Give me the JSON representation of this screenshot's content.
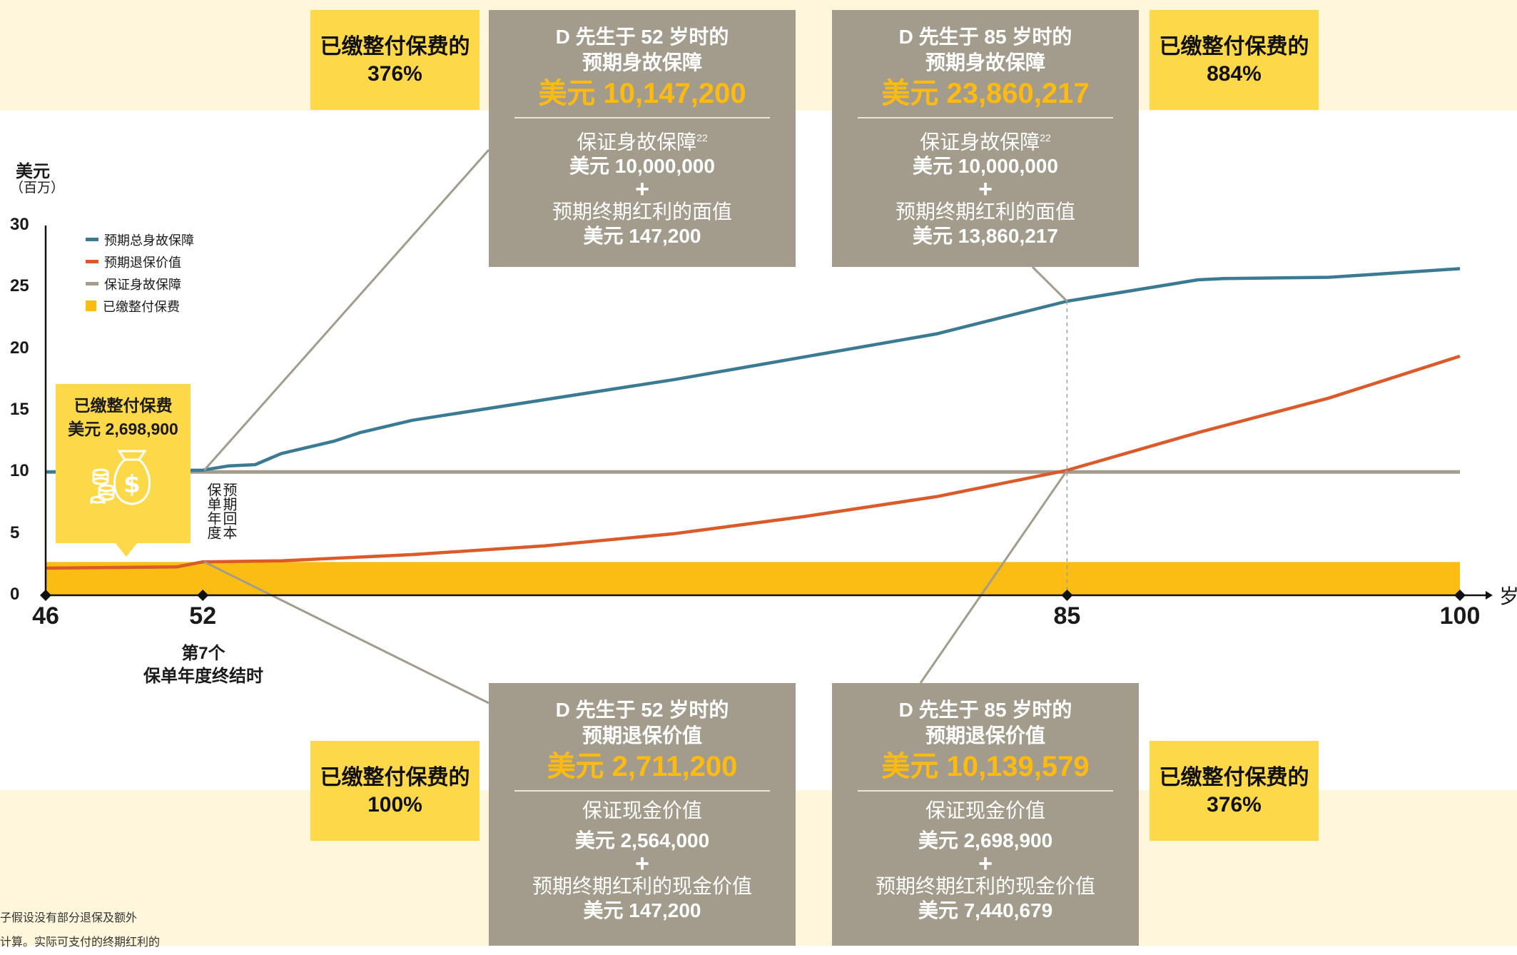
{
  "colors": {
    "blue": "#3a7b93",
    "orange": "#db5a29",
    "gray": "#a39c8c",
    "yellow": "#fbbd14",
    "callout_yellow": "#fdd94a",
    "band": "#fff6dc"
  },
  "top_left_pct": {
    "title": "已缴整付保费的",
    "value": "376%"
  },
  "top_right_pct": {
    "title": "已缴整付保费的",
    "value": "884%"
  },
  "bottom_left_pct": {
    "title": "已缴整付保费的",
    "value": "100%"
  },
  "bottom_right_pct": {
    "title": "已缴整付保费的",
    "value": "376%"
  },
  "box_death_52": {
    "line1": "D 先生于 52 岁时的",
    "line2": "预期身故保障",
    "amount": "美元 10,147,200",
    "g_label": "保证身故保障",
    "g_sup": "22",
    "g_value": "美元 10,000,000",
    "plus": "+",
    "b_label": "预期终期红利的面值",
    "b_value": "美元 147,200"
  },
  "box_death_85": {
    "line1": "D 先生于 85 岁时的",
    "line2": "预期身故保障",
    "amount": "美元 23,860,217",
    "g_label": "保证身故保障",
    "g_sup": "22",
    "g_value": "美元 10,000,000",
    "plus": "+",
    "b_label": "预期终期红利的面值",
    "b_value": "美元 13,860,217"
  },
  "box_surr_52": {
    "line1": "D 先生于 52 岁时的",
    "line2": "预期退保价值",
    "amount": "美元 2,711,200",
    "g_label": "保证现金价值",
    "g_value": "美元 2,564,000",
    "plus": "+",
    "b_label": "预期终期红利的现金价值",
    "b_value": "美元 147,200"
  },
  "box_surr_85": {
    "line1": "D 先生于 85 岁时的",
    "line2": "预期退保价值",
    "amount": "美元 10,139,579",
    "g_label": "保证现金价值",
    "g_value": "美元 2,698,900",
    "plus": "+",
    "b_label": "预期终期红利的现金价值",
    "b_value": "美元 7,440,679"
  },
  "premium_box": {
    "title": "已缴整付保费",
    "value": "美元 2,698,900",
    "icon": "money-bag-coins-icon"
  },
  "breakeven_label": {
    "line1": "预期回本",
    "line2": "保单年度"
  },
  "x_sublabel": {
    "line1": "第7个",
    "line2": "保单年度终结时"
  },
  "footnote": {
    "line1": "子假设没有部分退保及额外",
    "line2": "计算。实际可支付的终期红利的"
  },
  "chart_data": {
    "type": "line",
    "ylabel": "美元",
    "yunit": "（百万）",
    "xlabel": "岁",
    "ylim": [
      0,
      30
    ],
    "xlim": [
      46,
      100
    ],
    "yticks": [
      "0",
      "5",
      "10",
      "15",
      "20",
      "25",
      "30"
    ],
    "xticks": [
      "46",
      "52",
      "85",
      "100"
    ],
    "grid": false,
    "legend_position": "top-left",
    "series": [
      {
        "name": "预期总身故保障",
        "color": "#3a7b93",
        "x": [
          46,
          52,
          53,
          54,
          55,
          56,
          57,
          58,
          60,
          70,
          80,
          85,
          90,
          91,
          95,
          100
        ],
        "y": [
          10,
          10.15,
          10.5,
          10.6,
          11.5,
          12,
          12.5,
          13.2,
          14.2,
          17.5,
          21.2,
          23.86,
          25.6,
          25.7,
          25.8,
          26.5
        ]
      },
      {
        "name": "预期退保价值",
        "color": "#db5a29",
        "x": [
          46,
          51,
          52,
          55,
          60,
          65,
          70,
          75,
          80,
          85,
          90,
          95,
          100
        ],
        "y": [
          2.2,
          2.3,
          2.71,
          2.8,
          3.3,
          4.0,
          5.0,
          6.4,
          8.0,
          10.14,
          13.2,
          16.0,
          19.4
        ]
      },
      {
        "name": "保证身故保障",
        "color": "#a39c8c",
        "x": [
          46,
          100
        ],
        "y": [
          10,
          10
        ]
      },
      {
        "name": "已缴整付保费",
        "color": "#fbbd14",
        "type": "area",
        "x": [
          46,
          100
        ],
        "y": [
          2.7,
          2.7
        ]
      }
    ],
    "annotations": [
      {
        "x": 52,
        "label": "第7个 保单年度终结时"
      },
      {
        "x": 85,
        "label": "D 先生于 85 岁时"
      }
    ]
  }
}
